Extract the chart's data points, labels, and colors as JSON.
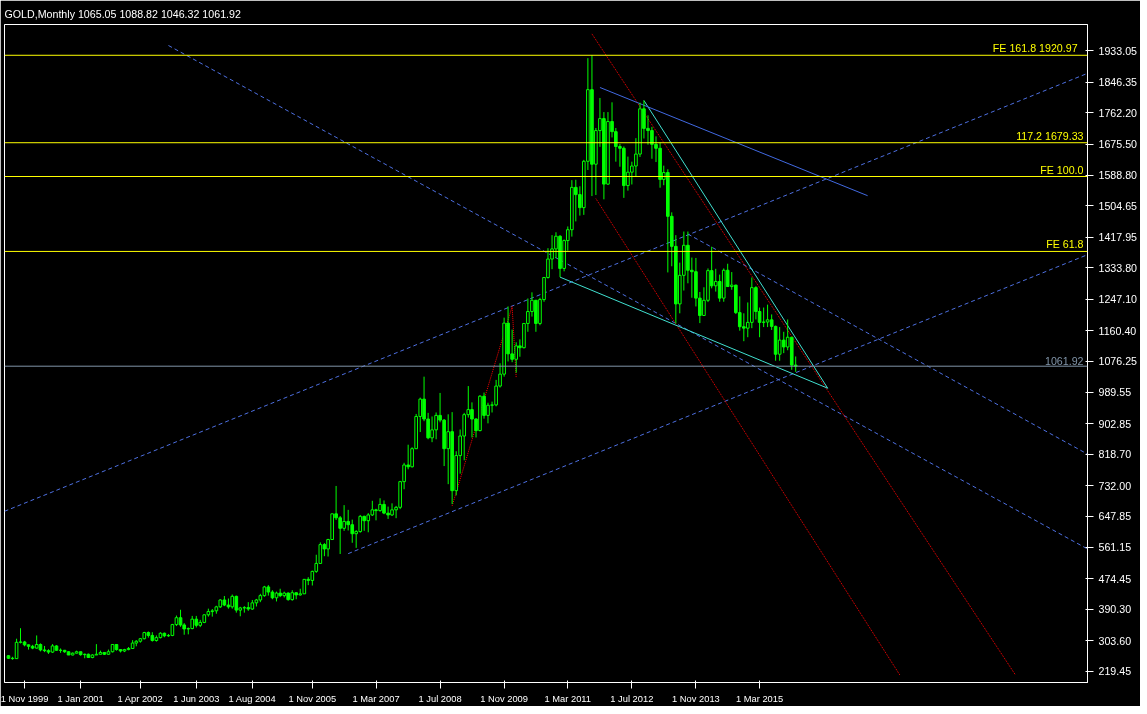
{
  "chart_data": {
    "type": "candlestick",
    "title": "GOLD,Monthly  1065.05 1088.82 1046.32 1061.92",
    "color": "#00ff00",
    "x": [
      "1999-07",
      "1999-08",
      "1999-09",
      "1999-10",
      "1999-11",
      "1999-12",
      "2000-01",
      "2000-02",
      "2000-03",
      "2000-04",
      "2000-05",
      "2000-06",
      "2000-07",
      "2000-08",
      "2000-09",
      "2000-10",
      "2000-11",
      "2000-12",
      "2001-01",
      "2001-02",
      "2001-03",
      "2001-04",
      "2001-05",
      "2001-06",
      "2001-07",
      "2001-08",
      "2001-09",
      "2001-10",
      "2001-11",
      "2001-12",
      "2002-01",
      "2002-02",
      "2002-03",
      "2002-04",
      "2002-05",
      "2002-06",
      "2002-07",
      "2002-08",
      "2002-09",
      "2002-10",
      "2002-11",
      "2002-12",
      "2003-01",
      "2003-02",
      "2003-03",
      "2003-04",
      "2003-05",
      "2003-06",
      "2003-07",
      "2003-08",
      "2003-09",
      "2003-10",
      "2003-11",
      "2003-12",
      "2004-01",
      "2004-02",
      "2004-03",
      "2004-04",
      "2004-05",
      "2004-06",
      "2004-07",
      "2004-08",
      "2004-09",
      "2004-10",
      "2004-11",
      "2004-12",
      "2005-01",
      "2005-02",
      "2005-03",
      "2005-04",
      "2005-05",
      "2005-06",
      "2005-07",
      "2005-08",
      "2005-09",
      "2005-10",
      "2005-11",
      "2005-12",
      "2006-01",
      "2006-02",
      "2006-03",
      "2006-04",
      "2006-05",
      "2006-06",
      "2006-07",
      "2006-08",
      "2006-09",
      "2006-10",
      "2006-11",
      "2006-12",
      "2007-01",
      "2007-02",
      "2007-03",
      "2007-04",
      "2007-05",
      "2007-06",
      "2007-07",
      "2007-08",
      "2007-09",
      "2007-10",
      "2007-11",
      "2007-12",
      "2008-01",
      "2008-02",
      "2008-03",
      "2008-04",
      "2008-05",
      "2008-06",
      "2008-07",
      "2008-08",
      "2008-09",
      "2008-10",
      "2008-11",
      "2008-12",
      "2009-01",
      "2009-02",
      "2009-03",
      "2009-04",
      "2009-05",
      "2009-06",
      "2009-07",
      "2009-08",
      "2009-09",
      "2009-10",
      "2009-11",
      "2009-12",
      "2010-01",
      "2010-02",
      "2010-03",
      "2010-04",
      "2010-05",
      "2010-06",
      "2010-07",
      "2010-08",
      "2010-09",
      "2010-10",
      "2010-11",
      "2010-12",
      "2011-01",
      "2011-02",
      "2011-03",
      "2011-04",
      "2011-05",
      "2011-06",
      "2011-07",
      "2011-08",
      "2011-09",
      "2011-10",
      "2011-11",
      "2011-12",
      "2012-01",
      "2012-02",
      "2012-03",
      "2012-04",
      "2012-05",
      "2012-06",
      "2012-07",
      "2012-08",
      "2012-09",
      "2012-10",
      "2012-11",
      "2012-12",
      "2013-01",
      "2013-02",
      "2013-03",
      "2013-04",
      "2013-05",
      "2013-06",
      "2013-07",
      "2013-08",
      "2013-09",
      "2013-10",
      "2013-11",
      "2013-12",
      "2014-01",
      "2014-02",
      "2014-03",
      "2014-04",
      "2014-05",
      "2014-06",
      "2014-07",
      "2014-08",
      "2014-09",
      "2014-10",
      "2014-11",
      "2014-12",
      "2015-01",
      "2015-02",
      "2015-03",
      "2015-04",
      "2015-05",
      "2015-06",
      "2015-07",
      "2015-08",
      "2015-09",
      "2015-10",
      "2015-11",
      "2015-12"
    ],
    "ohlc": [
      [
        262,
        264,
        253,
        255
      ],
      [
        255,
        259,
        251,
        254
      ],
      [
        254,
        309,
        254,
        299
      ],
      [
        299,
        338,
        296,
        300
      ],
      [
        300,
        303,
        288,
        292
      ],
      [
        292,
        293,
        279,
        288
      ],
      [
        288,
        292,
        280,
        283
      ],
      [
        283,
        318,
        282,
        293
      ],
      [
        293,
        296,
        274,
        278
      ],
      [
        278,
        289,
        272,
        276
      ],
      [
        276,
        280,
        267,
        272
      ],
      [
        272,
        294,
        270,
        289
      ],
      [
        289,
        291,
        276,
        277
      ],
      [
        277,
        282,
        270,
        277
      ],
      [
        277,
        278,
        270,
        273
      ],
      [
        273,
        274,
        264,
        264
      ],
      [
        264,
        271,
        263,
        269
      ],
      [
        269,
        276,
        268,
        273
      ],
      [
        273,
        273,
        262,
        265
      ],
      [
        265,
        268,
        255,
        266
      ],
      [
        266,
        268,
        256,
        257
      ],
      [
        257,
        266,
        255,
        264
      ],
      [
        264,
        294,
        264,
        266
      ],
      [
        266,
        276,
        266,
        271
      ],
      [
        271,
        272,
        264,
        266
      ],
      [
        266,
        279,
        265,
        273
      ],
      [
        273,
        294,
        271,
        293
      ],
      [
        293,
        293,
        276,
        279
      ],
      [
        279,
        280,
        271,
        275
      ],
      [
        275,
        281,
        272,
        279
      ],
      [
        279,
        286,
        277,
        282
      ],
      [
        282,
        305,
        282,
        297
      ],
      [
        297,
        305,
        288,
        302
      ],
      [
        302,
        311,
        298,
        309
      ],
      [
        309,
        328,
        307,
        326
      ],
      [
        326,
        329,
        312,
        318
      ],
      [
        318,
        327,
        301,
        304
      ],
      [
        304,
        318,
        301,
        312
      ],
      [
        312,
        327,
        310,
        324
      ],
      [
        324,
        326,
        313,
        317
      ],
      [
        317,
        322,
        314,
        318
      ],
      [
        318,
        350,
        316,
        348
      ],
      [
        348,
        373,
        344,
        367
      ],
      [
        367,
        389,
        342,
        347
      ],
      [
        347,
        352,
        320,
        336
      ],
      [
        336,
        340,
        321,
        337
      ],
      [
        337,
        372,
        335,
        363
      ],
      [
        363,
        372,
        340,
        346
      ],
      [
        346,
        361,
        341,
        354
      ],
      [
        354,
        376,
        352,
        375
      ],
      [
        375,
        392,
        370,
        384
      ],
      [
        384,
        391,
        370,
        386
      ],
      [
        386,
        400,
        378,
        397
      ],
      [
        397,
        418,
        394,
        416
      ],
      [
        416,
        427,
        399,
        402
      ],
      [
        402,
        420,
        392,
        397
      ],
      [
        397,
        431,
        392,
        426
      ],
      [
        426,
        428,
        381,
        388
      ],
      [
        388,
        397,
        371,
        394
      ],
      [
        394,
        399,
        381,
        395
      ],
      [
        395,
        410,
        386,
        391
      ],
      [
        391,
        416,
        389,
        408
      ],
      [
        408,
        419,
        398,
        416
      ],
      [
        416,
        433,
        410,
        428
      ],
      [
        428,
        455,
        425,
        452
      ],
      [
        452,
        457,
        428,
        438
      ],
      [
        438,
        443,
        418,
        422
      ],
      [
        422,
        439,
        412,
        435
      ],
      [
        435,
        447,
        424,
        428
      ],
      [
        428,
        439,
        423,
        435
      ],
      [
        435,
        437,
        414,
        417
      ],
      [
        417,
        443,
        414,
        436
      ],
      [
        436,
        437,
        418,
        430
      ],
      [
        430,
        447,
        428,
        433
      ],
      [
        433,
        474,
        433,
        473
      ],
      [
        473,
        479,
        457,
        470
      ],
      [
        470,
        497,
        456,
        495
      ],
      [
        495,
        541,
        491,
        517
      ],
      [
        517,
        575,
        516,
        569
      ],
      [
        569,
        573,
        537,
        557
      ],
      [
        557,
        585,
        536,
        583
      ],
      [
        583,
        655,
        582,
        654
      ],
      [
        654,
        731,
        637,
        643
      ],
      [
        643,
        648,
        543,
        614
      ],
      [
        614,
        678,
        607,
        633
      ],
      [
        633,
        665,
        608,
        624
      ],
      [
        624,
        638,
        574,
        599
      ],
      [
        599,
        609,
        560,
        605
      ],
      [
        605,
        651,
        602,
        647
      ],
      [
        647,
        649,
        607,
        635
      ],
      [
        635,
        656,
        603,
        651
      ],
      [
        651,
        690,
        648,
        665
      ],
      [
        665,
        668,
        636,
        663
      ],
      [
        663,
        697,
        660,
        680
      ],
      [
        680,
        691,
        653,
        656
      ],
      [
        656,
        674,
        640,
        651
      ],
      [
        651,
        683,
        648,
        665
      ],
      [
        665,
        676,
        642,
        672
      ],
      [
        672,
        745,
        667,
        743
      ],
      [
        743,
        795,
        722,
        789
      ],
      [
        789,
        845,
        777,
        784
      ],
      [
        784,
        838,
        782,
        834
      ],
      [
        834,
        930,
        833,
        923
      ],
      [
        923,
        975,
        880,
        971
      ],
      [
        971,
        1033,
        910,
        916
      ],
      [
        916,
        933,
        860,
        864
      ],
      [
        864,
        923,
        852,
        886
      ],
      [
        886,
        934,
        860,
        926
      ],
      [
        926,
        988,
        907,
        913
      ],
      [
        913,
        916,
        786,
        834
      ],
      [
        834,
        929,
        736,
        881
      ],
      [
        881,
        935,
        681,
        718
      ],
      [
        718,
        827,
        705,
        815
      ],
      [
        815,
        887,
        765,
        869
      ],
      [
        869,
        933,
        802,
        928
      ],
      [
        928,
        1007,
        920,
        942
      ],
      [
        942,
        962,
        865,
        916
      ],
      [
        916,
        918,
        865,
        884
      ],
      [
        884,
        982,
        882,
        979
      ],
      [
        979,
        989,
        917,
        926
      ],
      [
        926,
        961,
        904,
        954
      ],
      [
        954,
        964,
        934,
        955
      ],
      [
        955,
        1024,
        951,
        1007
      ],
      [
        1007,
        1070,
        1003,
        1040
      ],
      [
        1040,
        1196,
        1033,
        1181
      ],
      [
        1181,
        1227,
        1075,
        1096
      ],
      [
        1096,
        1163,
        1073,
        1081
      ],
      [
        1081,
        1128,
        1044,
        1118
      ],
      [
        1118,
        1136,
        1088,
        1113
      ],
      [
        1113,
        1181,
        1111,
        1180
      ],
      [
        1180,
        1249,
        1157,
        1213
      ],
      [
        1213,
        1266,
        1199,
        1244
      ],
      [
        1244,
        1245,
        1157,
        1180
      ],
      [
        1180,
        1251,
        1175,
        1246
      ],
      [
        1246,
        1308,
        1240,
        1307
      ],
      [
        1307,
        1388,
        1304,
        1358
      ],
      [
        1358,
        1424,
        1330,
        1386
      ],
      [
        1386,
        1432,
        1360,
        1421
      ],
      [
        1421,
        1424,
        1308,
        1332
      ],
      [
        1332,
        1412,
        1324,
        1409
      ],
      [
        1409,
        1448,
        1381,
        1439
      ],
      [
        1439,
        1576,
        1420,
        1556
      ],
      [
        1556,
        1577,
        1462,
        1536
      ],
      [
        1536,
        1559,
        1478,
        1500
      ],
      [
        1500,
        1632,
        1480,
        1628
      ],
      [
        1628,
        1913,
        1604,
        1826
      ],
      [
        1826,
        1921,
        1532,
        1620
      ],
      [
        1620,
        1720,
        1535,
        1713
      ],
      [
        1713,
        1803,
        1668,
        1746
      ],
      [
        1746,
        1764,
        1523,
        1565
      ],
      [
        1565,
        1764,
        1563,
        1738
      ],
      [
        1738,
        1791,
        1694,
        1710
      ],
      [
        1710,
        1720,
        1627,
        1669
      ],
      [
        1669,
        1676,
        1613,
        1664
      ],
      [
        1664,
        1669,
        1527,
        1561
      ],
      [
        1561,
        1641,
        1547,
        1598
      ],
      [
        1598,
        1627,
        1564,
        1615
      ],
      [
        1615,
        1692,
        1587,
        1648
      ],
      [
        1648,
        1790,
        1640,
        1773
      ],
      [
        1773,
        1796,
        1691,
        1719
      ],
      [
        1719,
        1755,
        1674,
        1713
      ],
      [
        1713,
        1723,
        1635,
        1675
      ],
      [
        1675,
        1697,
        1626,
        1664
      ],
      [
        1664,
        1680,
        1555,
        1578
      ],
      [
        1578,
        1616,
        1562,
        1597
      ],
      [
        1597,
        1606,
        1321,
        1476
      ],
      [
        1476,
        1487,
        1338,
        1393
      ],
      [
        1393,
        1424,
        1180,
        1234
      ],
      [
        1234,
        1348,
        1208,
        1313
      ],
      [
        1313,
        1434,
        1271,
        1396
      ],
      [
        1396,
        1434,
        1291,
        1327
      ],
      [
        1327,
        1362,
        1251,
        1323
      ],
      [
        1323,
        1361,
        1227,
        1250
      ],
      [
        1250,
        1267,
        1181,
        1202
      ],
      [
        1202,
        1280,
        1202,
        1244
      ],
      [
        1244,
        1332,
        1239,
        1326
      ],
      [
        1326,
        1392,
        1277,
        1284
      ],
      [
        1284,
        1331,
        1268,
        1296
      ],
      [
        1296,
        1315,
        1240,
        1250
      ],
      [
        1250,
        1332,
        1240,
        1327
      ],
      [
        1327,
        1345,
        1281,
        1282
      ],
      [
        1282,
        1322,
        1273,
        1286
      ],
      [
        1286,
        1287,
        1206,
        1210
      ],
      [
        1210,
        1255,
        1160,
        1171
      ],
      [
        1171,
        1208,
        1131,
        1167
      ],
      [
        1167,
        1238,
        1142,
        1183
      ],
      [
        1183,
        1307,
        1167,
        1279
      ],
      [
        1279,
        1283,
        1191,
        1213
      ],
      [
        1213,
        1224,
        1142,
        1183
      ],
      [
        1183,
        1224,
        1170,
        1184
      ],
      [
        1184,
        1232,
        1170,
        1190
      ],
      [
        1190,
        1205,
        1162,
        1172
      ],
      [
        1172,
        1174,
        1077,
        1095
      ],
      [
        1095,
        1170,
        1077,
        1134
      ],
      [
        1134,
        1157,
        1098,
        1115
      ],
      [
        1115,
        1191,
        1106,
        1142
      ],
      [
        1142,
        1142,
        1052,
        1065
      ],
      [
        1065.05,
        1088.82,
        1046.32,
        1061.92
      ]
    ],
    "series": [
      {
        "type": "line",
        "x": [
          "2002-11",
          "2022-01"
        ],
        "values": [
          1948,
          557
        ],
        "color": "#4d6fe0",
        "line_style": "dashed"
      },
      {
        "type": "line",
        "x": [
          "2013-09",
          "2022-01"
        ],
        "values": [
          1427,
          819
        ],
        "color": "#4d6fe0",
        "line_style": "dashed"
      },
      {
        "type": "line",
        "x": [
          "1999-06",
          "2022-01"
        ],
        "values": [
          661,
          1871
        ],
        "color": "#4d6fe0",
        "line_style": "dashed"
      },
      {
        "type": "line",
        "x": [
          "2006-08",
          "2022-01"
        ],
        "values": [
          544,
          1370
        ],
        "color": "#4d6fe0",
        "line_style": "dashed"
      },
      {
        "type": "line",
        "x": [
          "2011-09",
          "2020-07"
        ],
        "values": [
          1980,
          209
        ],
        "color": "#ff0000",
        "line_style": "dotted"
      },
      {
        "type": "line",
        "x": [
          "2011-10",
          "2018-02"
        ],
        "values": [
          1525,
          209
        ],
        "color": "#ff0000",
        "line_style": "dotted"
      },
      {
        "type": "line",
        "x": [
          "2008-10",
          "2010-01",
          "2010-02"
        ],
        "values": [
          676,
          1227,
          1030
        ],
        "color": "#ff0000",
        "line_style": "dotted"
      },
      {
        "type": "line",
        "x": [
          "2011-01",
          "2016-08"
        ],
        "values": [
          1308,
          1001
        ],
        "color": "#40e0d0",
        "line_style": "solid"
      },
      {
        "type": "line",
        "x": [
          "2012-10",
          "2016-08"
        ],
        "values": [
          1796,
          1001
        ],
        "color": "#40e0d0",
        "line_style": "solid"
      },
      {
        "type": "line",
        "x": [
          "2011-11",
          "2017-06"
        ],
        "values": [
          1832,
          1533
        ],
        "color": "#4169e1",
        "line_style": "solid"
      }
    ],
    "ref_lines": [
      {
        "axis": "y",
        "value": 1920.97,
        "label": "FE 161.8   1920.97",
        "color": "#ffff00"
      },
      {
        "axis": "y",
        "value": 1679.33,
        "label": "117.2 1679.33",
        "color": "#ffff00"
      },
      {
        "axis": "y",
        "value": 1586,
        "label": "FE 100.0",
        "color": "#ffff00"
      },
      {
        "axis": "y",
        "value": 1379,
        "label": "FE 61.8",
        "color": "#ffff00"
      },
      {
        "axis": "y",
        "value": 1061.92,
        "label": "1061.92",
        "color": "#8094a8"
      }
    ],
    "xlim": [
      "1999-06",
      "2022-01"
    ],
    "xticks": [
      {
        "value": "1999-11",
        "label": "1 Nov 1999"
      },
      {
        "value": "2001-01",
        "label": "1 Jan 2001"
      },
      {
        "value": "2002-04",
        "label": "1 Apr 2002"
      },
      {
        "value": "2003-06",
        "label": "1 Jun 2003"
      },
      {
        "value": "2004-08",
        "label": "1 Aug 2004"
      },
      {
        "value": "2005-11",
        "label": "1 Nov 2005"
      },
      {
        "value": "2007-03",
        "label": "1 Mar 2007"
      },
      {
        "value": "2008-07",
        "label": "1 Jul 2008"
      },
      {
        "value": "2009-11",
        "label": "1 Nov 2009"
      },
      {
        "value": "2011-03",
        "label": "1 Mar 2011"
      },
      {
        "value": "2012-07",
        "label": "1 Jul 2012"
      },
      {
        "value": "2013-11",
        "label": "1 Nov 2013"
      },
      {
        "value": "2015-03",
        "label": "1 Mar 2015"
      }
    ],
    "ylim": [
      188,
      2006
    ],
    "yticks": [
      219.45,
      {
        "value": 303.6,
        "label": "303.60"
      },
      {
        "value": 390.3,
        "label": "390.30"
      },
      474.45,
      561.15,
      647.85,
      {
        "value": 732,
        "label": "732.00"
      },
      {
        "value": 818.7,
        "label": "818.70"
      },
      902.85,
      989.55,
      1076.25,
      {
        "value": 1160.4,
        "label": "1160.40"
      },
      {
        "value": 1247.1,
        "label": "1247.10"
      },
      {
        "value": 1333.8,
        "label": "1333.80"
      },
      1417.95,
      1504.65,
      {
        "value": 1588.8,
        "label": "1588.80"
      },
      {
        "value": 1675.5,
        "label": "1675.50"
      },
      {
        "value": 1762.2,
        "label": "1762.20"
      },
      1846.35,
      1933.05
    ]
  }
}
